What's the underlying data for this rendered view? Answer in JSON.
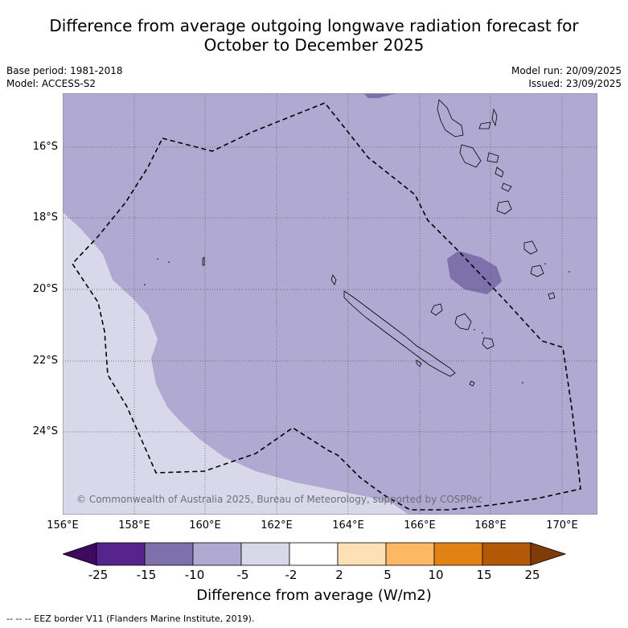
{
  "title": {
    "line1": "Difference from average outgoing longwave radiation forecast for",
    "line2": "October to December 2025"
  },
  "meta": {
    "base_period": "Base period: 1981-2018",
    "model": "Model: ACCESS-S2",
    "model_run": "Model run: 20/09/2025",
    "issued": "Issued: 23/09/2025"
  },
  "map": {
    "lat_ticks": [
      "16°S",
      "18°S",
      "20°S",
      "22°S",
      "24°S"
    ],
    "lon_ticks": [
      "156°E",
      "158°E",
      "160°E",
      "162°E",
      "164°E",
      "166°E",
      "168°E",
      "170°E"
    ],
    "credit": "© Commonwealth of Australia 2025, Bureau of Meteorology, supported by COSPPac",
    "category_colors": {
      "-15_to_-10": "#7e70ab",
      "-10_to_-5": "#b0a9d1",
      "-5_to_-2": "#d8d8ea"
    }
  },
  "colorbar": {
    "labels": [
      "-25",
      "-15",
      "-10",
      "-5",
      "-2",
      "2",
      "5",
      "10",
      "15",
      "25"
    ],
    "colors": [
      "#3c0a5e",
      "#57238c",
      "#7e70ab",
      "#b0a9d1",
      "#d8d8ea",
      "#ffffff",
      "#fee0b6",
      "#fdb863",
      "#e08214",
      "#b35806",
      "#7f3b08"
    ],
    "title": "Difference from average (W/m2)"
  },
  "legend": {
    "eez": "-- -- -- EEZ border V11 (Flanders Marine Institute, 2019)."
  }
}
